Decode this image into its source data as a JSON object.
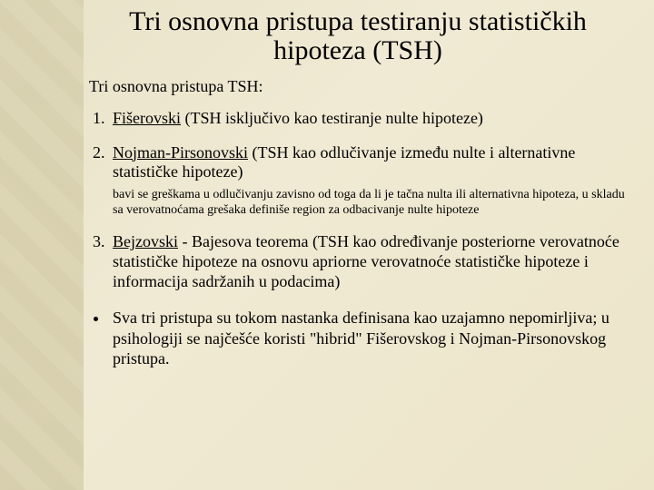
{
  "slide": {
    "title": "Tri osnovna pristupa testiranju statističkih hipoteza (TSH)",
    "intro": "Tri osnovna pristupa TSH:",
    "items": [
      {
        "name": "Fišerovski",
        "desc": " (TSH isključivo kao testiranje nulte hipoteze)",
        "note": ""
      },
      {
        "name": "Nojman-Pirsonovski",
        "desc": " (TSH kao odlučivanje između nulte i alternativne statističke hipoteze)",
        "note": "bavi se greškama u odlučivanju zavisno od toga da li je tačna nulta ili alternativna hipoteza, u skladu sa verovatnoćama grešaka definiše region za odbacivanje nulte hipoteze"
      },
      {
        "name": "Bejzovski",
        "desc": " -  Bajesova teorema (TSH kao određivanje posteriorne verovatnoće statističke hipoteze na osnovu apriorne verovatnoće statističke hipoteze i informacija sadržanih u podacima)",
        "note": ""
      }
    ],
    "bullet": "Sva tri pristupa su tokom nastanka definisana kao uzajamno nepomirljiva; u psihologiji se najčešće koristi \"hibrid\" Fišerovskog i Nojman-Pirsonovskog pristupa."
  },
  "colors": {
    "bg_light": "#f0ead4",
    "bg_strip": "#d4cca5",
    "text": "#000000"
  }
}
